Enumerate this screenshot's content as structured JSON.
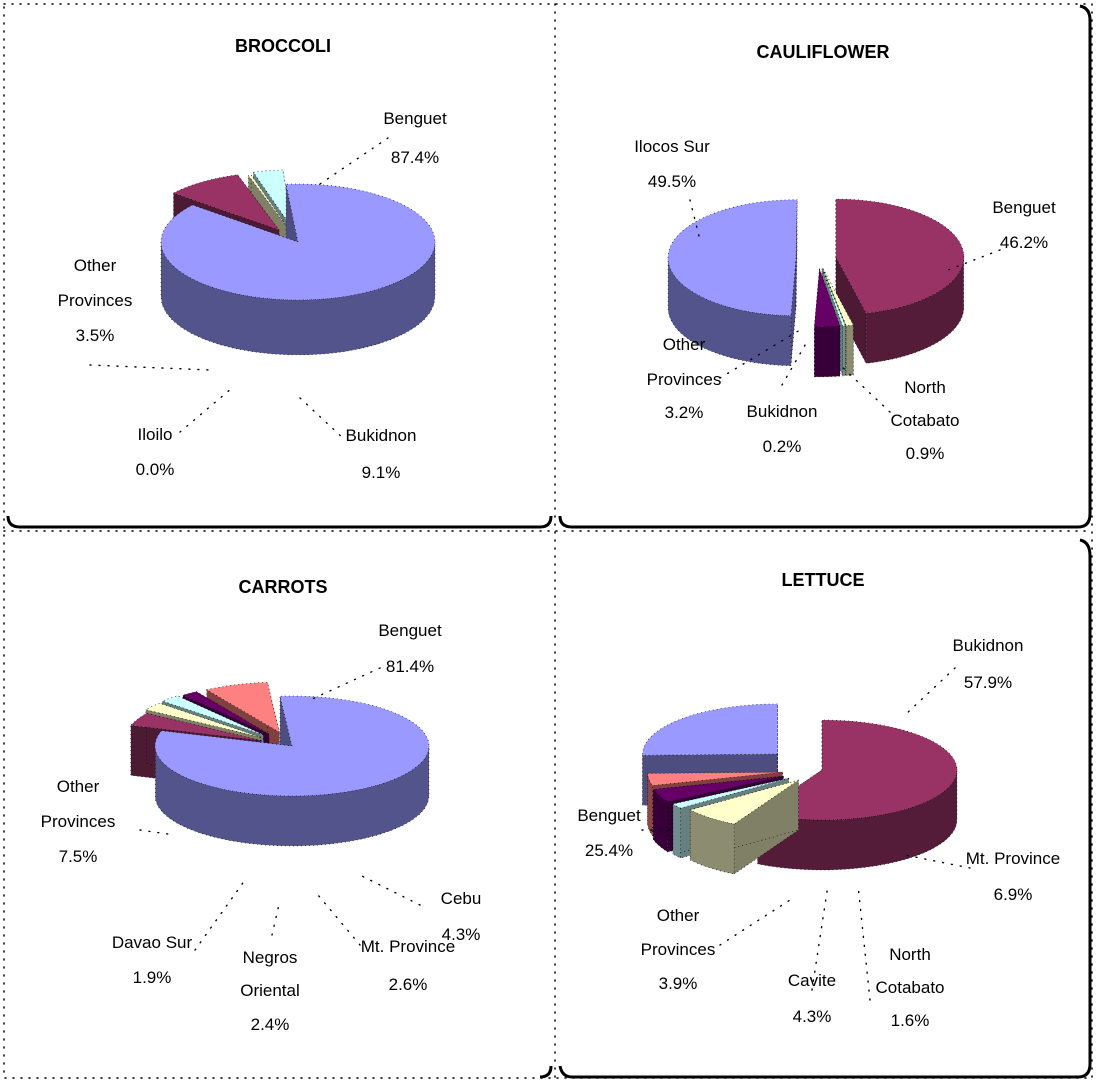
{
  "chart_data": [
    {
      "type": "pie",
      "title": "BROCCOLI",
      "slices": [
        {
          "label": "Benguet",
          "value": 87.4,
          "value_text": "87.4%",
          "color": "#9999ff"
        },
        {
          "label": "Bukidnon",
          "value": 9.1,
          "value_text": "9.1%",
          "color": "#993366"
        },
        {
          "label": "Iloilo",
          "value": 0.0,
          "value_text": "0.0%",
          "color": "#ffffcc"
        },
        {
          "label": "Other Provinces",
          "value": 3.5,
          "value_text": "3.5%",
          "color": "#ccffff"
        }
      ]
    },
    {
      "type": "pie",
      "title": "CAULIFLOWER",
      "slices": [
        {
          "label": "Benguet",
          "value": 46.2,
          "value_text": "46.2%",
          "color": "#993366"
        },
        {
          "label": "North Cotabato",
          "value": 0.9,
          "value_text": "0.9%",
          "color": "#ffffcc"
        },
        {
          "label": "Bukidnon",
          "value": 0.2,
          "value_text": "0.2%",
          "color": "#ccffff"
        },
        {
          "label": "Other Provinces",
          "value": 3.2,
          "value_text": "3.2%",
          "color": "#660066"
        },
        {
          "label": "Ilocos Sur",
          "value": 49.5,
          "value_text": "49.5%",
          "color": "#9999ff"
        }
      ]
    },
    {
      "type": "pie",
      "title": "CARROTS",
      "slices": [
        {
          "label": "Benguet",
          "value": 81.4,
          "value_text": "81.4%",
          "color": "#9999ff"
        },
        {
          "label": "Cebu",
          "value": 4.3,
          "value_text": "4.3%",
          "color": "#993366"
        },
        {
          "label": "Mt. Province",
          "value": 2.6,
          "value_text": "2.6%",
          "color": "#ffffcc"
        },
        {
          "label": "Negros Oriental",
          "value": 2.4,
          "value_text": "2.4%",
          "color": "#ccffff"
        },
        {
          "label": "Davao Sur",
          "value": 1.9,
          "value_text": "1.9%",
          "color": "#660066"
        },
        {
          "label": "Other Provinces",
          "value": 7.5,
          "value_text": "7.5%",
          "color": "#ff8080"
        }
      ]
    },
    {
      "type": "pie",
      "title": "LETTUCE",
      "slices": [
        {
          "label": "Bukidnon",
          "value": 57.9,
          "value_text": "57.9%",
          "color": "#993366"
        },
        {
          "label": "Mt. Province",
          "value": 6.9,
          "value_text": "6.9%",
          "color": "#ffffcc"
        },
        {
          "label": "North Cotabato",
          "value": 1.6,
          "value_text": "1.6%",
          "color": "#ccffff"
        },
        {
          "label": "Cavite",
          "value": 4.3,
          "value_text": "4.3%",
          "color": "#660066"
        },
        {
          "label": "Other Provinces",
          "value": 3.9,
          "value_text": "3.9%",
          "color": "#ff8080"
        },
        {
          "label": "Benguet",
          "value": 25.4,
          "value_text": "25.4%",
          "color": "#9999ff"
        }
      ]
    }
  ]
}
